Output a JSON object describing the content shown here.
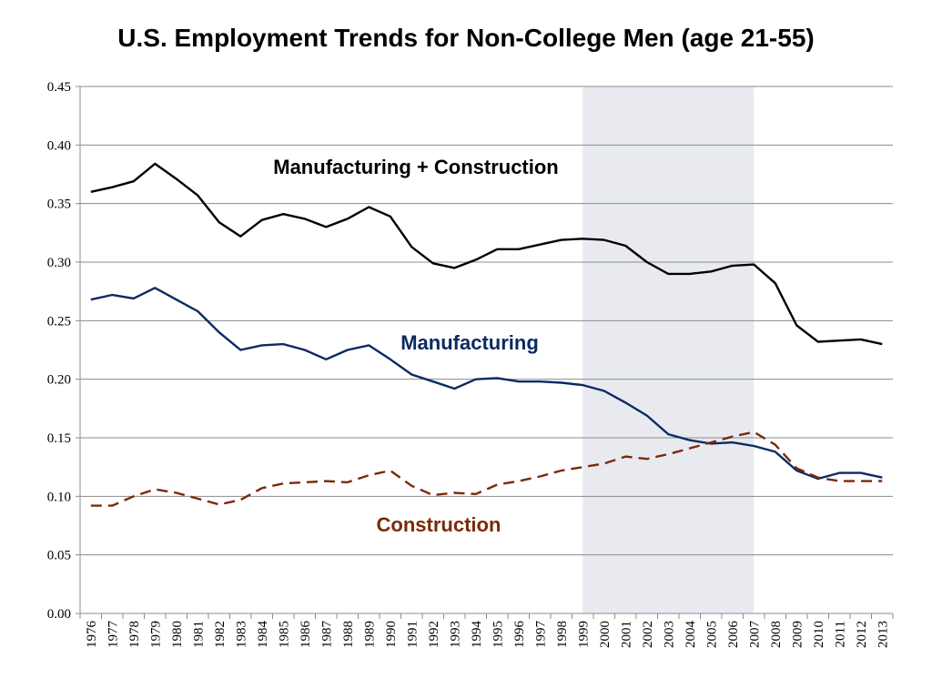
{
  "chart_data": {
    "type": "line",
    "title": "U.S. Employment Trends for Non-College Men (age 21-55)",
    "xlabel": "",
    "ylabel": "",
    "ylim": [
      0,
      0.45
    ],
    "y_ticks": [
      "0.00",
      "0.05",
      "0.10",
      "0.15",
      "0.20",
      "0.25",
      "0.30",
      "0.35",
      "0.40",
      "0.45"
    ],
    "x": [
      "1976",
      "1977",
      "1978",
      "1979",
      "1980",
      "1981",
      "1982",
      "1983",
      "1984",
      "1985",
      "1986",
      "1987",
      "1988",
      "1989",
      "1990",
      "1991",
      "1992",
      "1993",
      "1994",
      "1995",
      "1996",
      "1997",
      "1998",
      "1999",
      "2000",
      "2001",
      "2002",
      "2003",
      "2004",
      "2005",
      "2006",
      "2007",
      "2008",
      "2009",
      "2010",
      "2011",
      "2012",
      "2013"
    ],
    "shaded_region": {
      "from": "1999",
      "to": "2007",
      "color": "#e8eaf0"
    },
    "grid": true,
    "series": [
      {
        "name": "Manufacturing + Construction",
        "color": "#000000",
        "dash": "solid",
        "values": [
          0.36,
          0.364,
          0.369,
          0.384,
          0.371,
          0.357,
          0.334,
          0.322,
          0.336,
          0.341,
          0.337,
          0.33,
          0.337,
          0.347,
          0.339,
          0.313,
          0.299,
          0.295,
          0.302,
          0.311,
          0.311,
          0.315,
          0.319,
          0.32,
          0.319,
          0.314,
          0.3,
          0.29,
          0.29,
          0.292,
          0.297,
          0.298,
          0.282,
          0.246,
          0.232,
          0.233,
          0.234,
          0.23
        ]
      },
      {
        "name": "Manufacturing",
        "color": "#0b2a62",
        "dash": "solid",
        "values": [
          0.268,
          0.272,
          0.269,
          0.278,
          0.268,
          0.258,
          0.24,
          0.225,
          0.229,
          0.23,
          0.225,
          0.217,
          0.225,
          0.229,
          0.217,
          0.204,
          0.198,
          0.192,
          0.2,
          0.201,
          0.198,
          0.198,
          0.197,
          0.195,
          0.19,
          0.18,
          0.169,
          0.153,
          0.148,
          0.145,
          0.146,
          0.143,
          0.138,
          0.122,
          0.115,
          0.12,
          0.12,
          0.116
        ]
      },
      {
        "name": "Construction",
        "color": "#7a2a08",
        "dash": "dashed",
        "values": [
          0.092,
          0.092,
          0.1,
          0.106,
          0.103,
          0.098,
          0.093,
          0.097,
          0.107,
          0.111,
          0.112,
          0.113,
          0.112,
          0.118,
          0.122,
          0.109,
          0.101,
          0.103,
          0.102,
          0.11,
          0.113,
          0.117,
          0.122,
          0.125,
          0.128,
          0.134,
          0.132,
          0.136,
          0.141,
          0.146,
          0.151,
          0.155,
          0.144,
          0.124,
          0.116,
          0.113,
          0.113,
          0.113
        ]
      }
    ]
  }
}
